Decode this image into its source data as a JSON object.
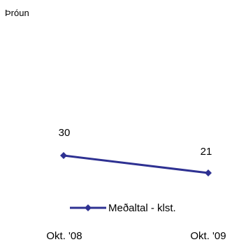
{
  "chart_data": {
    "type": "line",
    "title": "Þróun",
    "categories": [
      "Okt. '08",
      "Okt. '09"
    ],
    "series": [
      {
        "name": "Meðaltal - klst.",
        "values": [
          30,
          21
        ],
        "data_labels": [
          "30",
          "21"
        ]
      }
    ],
    "colors": {
      "series": "#2E3192"
    },
    "marker": "diamond",
    "legend_placement": "bottom",
    "grid": false,
    "xlabel": "",
    "ylabel": ""
  }
}
